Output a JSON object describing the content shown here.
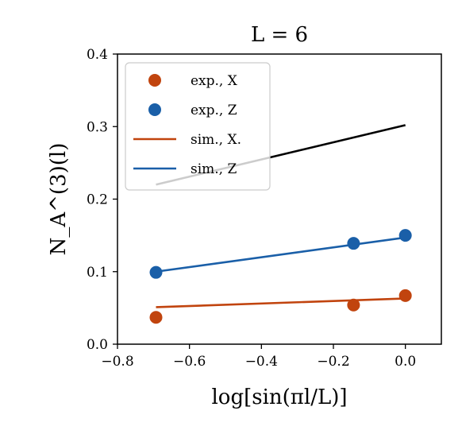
{
  "chart_data": {
    "type": "scatter",
    "title": "L = 6",
    "xlabel": "log[sin(πl/L)]",
    "ylabel": "N_A^(3)(l)",
    "xlim": [
      -0.8,
      0.1
    ],
    "ylim": [
      0.0,
      0.4
    ],
    "xticks": [
      -0.8,
      -0.6,
      -0.4,
      -0.2,
      0.0
    ],
    "xtick_labels": [
      "−0.8",
      "−0.6",
      "−0.4",
      "−0.2",
      "0.0"
    ],
    "yticks": [
      0.0,
      0.1,
      0.2,
      0.3,
      0.4
    ],
    "ytick_labels": [
      "0.0",
      "0.1",
      "0.2",
      "0.3",
      "0.4"
    ],
    "legend_position": "top-left",
    "grid": false,
    "series": [
      {
        "name": "exp., X",
        "kind": "points",
        "color": "#c1440e",
        "x": [
          -0.693,
          -0.144,
          0.0
        ],
        "y": [
          0.037,
          0.054,
          0.067
        ]
      },
      {
        "name": "exp., Z",
        "kind": "points",
        "color": "#1a5fa8",
        "x": [
          -0.693,
          -0.144,
          0.0
        ],
        "y": [
          0.099,
          0.139,
          0.15
        ]
      },
      {
        "name": "sim., X.",
        "kind": "line",
        "color": "#c1440e",
        "x": [
          -0.693,
          0.0
        ],
        "y": [
          0.051,
          0.063
        ]
      },
      {
        "name": "sim., Z",
        "kind": "line",
        "color": "#1a5fa8",
        "x": [
          -0.693,
          0.0
        ],
        "y": [
          0.1,
          0.147
        ]
      },
      {
        "name": "",
        "kind": "line",
        "color": "#000000",
        "x": [
          -0.693,
          0.0
        ],
        "y": [
          0.22,
          0.302
        ]
      }
    ]
  }
}
